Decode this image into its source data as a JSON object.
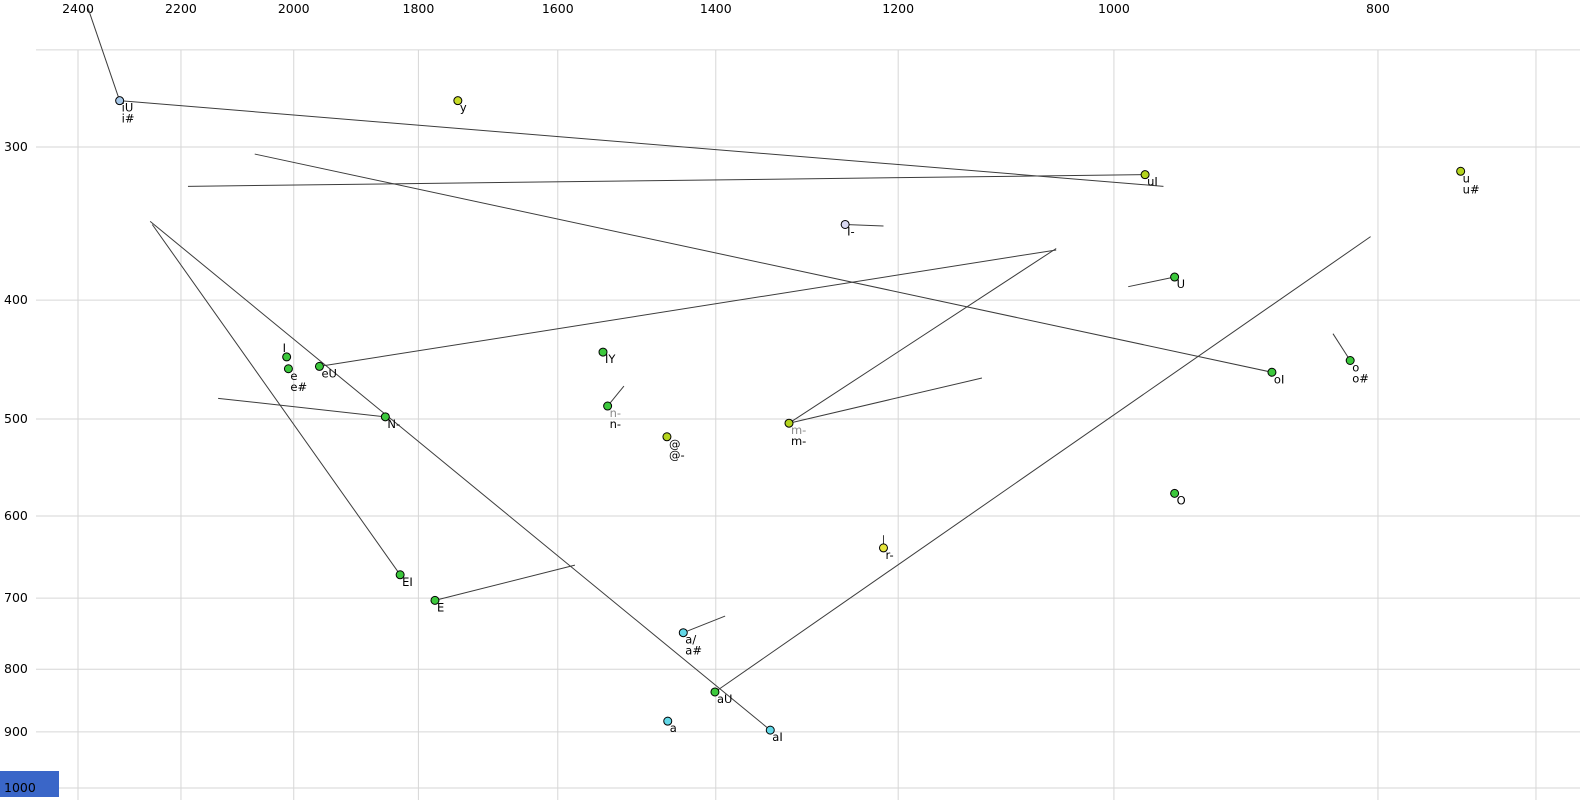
{
  "chart_data": {
    "type": "scatter",
    "title": "",
    "xlabel": "",
    "ylabel": "",
    "x_axis": {
      "scale": "log",
      "reversed": true,
      "unit": "Hz",
      "ticks": [
        2400,
        2200,
        2000,
        1800,
        1600,
        1400,
        1200,
        1000,
        800
      ],
      "extra_gridlines": [
        700
      ],
      "range": [
        2564,
        674
      ]
    },
    "y_axis": {
      "scale": "log",
      "reversed": true,
      "unit": "Hz",
      "ticks": [
        300,
        400,
        500,
        600,
        700,
        800,
        900,
        1000
      ],
      "extra_gridlines": [
        250
      ],
      "range": [
        228,
        1023
      ]
    },
    "points": [
      {
        "f2": 2317,
        "f1": 275,
        "color": "#a8c8e8",
        "labels": [
          {
            "text": "iU"
          },
          {
            "text": "i#"
          }
        ]
      },
      {
        "f2": 1741,
        "f1": 275,
        "color": "#c8dc28",
        "labels": [
          {
            "text": "y"
          }
        ]
      },
      {
        "f2": 974,
        "f1": 316,
        "color": "#b4d41e",
        "labels": [
          {
            "text": "uI"
          }
        ]
      },
      {
        "f2": 746,
        "f1": 314,
        "color": "#b4d41e",
        "labels": [
          {
            "text": "u"
          },
          {
            "text": "u#"
          }
        ]
      },
      {
        "f2": 1255,
        "f1": 347,
        "color": "#d8d8f0",
        "labels": [
          {
            "text": "I-"
          }
        ]
      },
      {
        "f2": 950,
        "f1": 383,
        "color": "#3cc83c",
        "labels": [
          {
            "text": "U"
          }
        ]
      },
      {
        "f2": 2012,
        "f1": 445,
        "color": "#3cc83c",
        "placement": "above",
        "labels": [
          {
            "text": "I"
          }
        ]
      },
      {
        "f2": 2009,
        "f1": 455,
        "color": "#3cc83c",
        "labels": [
          {
            "text": "e"
          },
          {
            "text": "e#"
          }
        ]
      },
      {
        "f2": 1957,
        "f1": 453,
        "color": "#3cc83c",
        "labels": [
          {
            "text": "eU"
          }
        ]
      },
      {
        "f2": 1540,
        "f1": 441,
        "color": "#3cc83c",
        "labels": [
          {
            "text": "IY"
          }
        ]
      },
      {
        "f2": 1534,
        "f1": 488,
        "color": "#3cc83c",
        "labels": [
          {
            "text": "n-",
            "color": "#8a8a8a"
          },
          {
            "text": "n-"
          }
        ]
      },
      {
        "f2": 1459,
        "f1": 517,
        "color": "#b4d41e",
        "labels": [
          {
            "text": "@"
          },
          {
            "text": "@-"
          }
        ]
      },
      {
        "f2": 1316,
        "f1": 504,
        "color": "#b4d41e",
        "labels": [
          {
            "text": "m-",
            "color": "#8a8a8a"
          },
          {
            "text": "m-"
          }
        ]
      },
      {
        "f2": 1851,
        "f1": 498,
        "color": "#3cc83c",
        "labels": [
          {
            "text": "N-"
          }
        ]
      },
      {
        "f2": 819,
        "f1": 448,
        "color": "#3cc83c",
        "labels": [
          {
            "text": "o"
          },
          {
            "text": "o#"
          }
        ]
      },
      {
        "f2": 875,
        "f1": 458,
        "color": "#3cc83c",
        "labels": [
          {
            "text": "oI"
          }
        ]
      },
      {
        "f2": 950,
        "f1": 575,
        "color": "#3cc83c",
        "labels": [
          {
            "text": "O"
          }
        ]
      },
      {
        "f2": 1215,
        "f1": 637,
        "color": "#e6e63c",
        "labels": [
          {
            "text": "r-"
          }
        ]
      },
      {
        "f2": 1828,
        "f1": 670,
        "color": "#3cc83c",
        "labels": [
          {
            "text": "EI"
          }
        ]
      },
      {
        "f2": 1775,
        "f1": 703,
        "color": "#3cc83c",
        "labels": [
          {
            "text": "E"
          }
        ]
      },
      {
        "f2": 1439,
        "f1": 747,
        "color": "#62d8e8",
        "labels": [
          {
            "text": "a/"
          },
          {
            "text": "a#"
          }
        ]
      },
      {
        "f2": 1401,
        "f1": 835,
        "color": "#3cc83c",
        "labels": [
          {
            "text": "aU"
          }
        ]
      },
      {
        "f2": 1458,
        "f1": 882,
        "color": "#62d8e8",
        "labels": [
          {
            "text": "a"
          }
        ]
      },
      {
        "f2": 1337,
        "f1": 897,
        "color": "#62d8e8",
        "labels": [
          {
            "text": "aI"
          }
        ]
      }
    ],
    "segments": [
      {
        "name": "i#-tail",
        "from": [
          2380,
          231
        ],
        "to": [
          2317,
          275
        ]
      },
      {
        "name": "iU-trajectory",
        "from": [
          2317,
          275
        ],
        "to": [
          959,
          323
        ]
      },
      {
        "name": "uI-trajectory",
        "from": [
          974,
          316
        ],
        "to": [
          2187,
          323
        ]
      },
      {
        "name": "oI-trajectory",
        "from": [
          875,
          458
        ],
        "to": [
          2067,
          304
        ]
      },
      {
        "name": "EI-trajectory",
        "from": [
          1828,
          670
        ],
        "to": [
          2254,
          347
        ]
      },
      {
        "name": "aI-trajectory",
        "from": [
          1337,
          897
        ],
        "to": [
          2258,
          345
        ]
      },
      {
        "name": "aU-trajectory",
        "from": [
          1401,
          835
        ],
        "to": [
          805,
          355
        ]
      },
      {
        "name": "eU-trajectory",
        "from": [
          1957,
          453
        ],
        "to": [
          1050,
          364
        ]
      },
      {
        "name": "E-tail",
        "from": [
          1775,
          703
        ],
        "to": [
          1577,
          658
        ]
      },
      {
        "name": "N--tail",
        "from": [
          1851,
          498
        ],
        "to": [
          2132,
          481
        ]
      },
      {
        "name": "m--tail-long",
        "from": [
          1316,
          504
        ],
        "to": [
          1050,
          363
        ]
      },
      {
        "name": "m--tail-short",
        "from": [
          1316,
          504
        ],
        "to": [
          1118,
          463
        ]
      },
      {
        "name": "U-tail",
        "from": [
          988,
          390
        ],
        "to": [
          950,
          383
        ]
      },
      {
        "name": "I--tail",
        "from": [
          1255,
          347
        ],
        "to": [
          1215,
          348
        ]
      },
      {
        "name": "o-tail",
        "from": [
          831,
          426
        ],
        "to": [
          819,
          448
        ]
      },
      {
        "name": "n--tail",
        "from": [
          1534,
          488
        ],
        "to": [
          1513,
          470
        ]
      },
      {
        "name": "a/-tail",
        "from": [
          1439,
          747
        ],
        "to": [
          1389,
          724
        ]
      },
      {
        "name": "r--tail",
        "from": [
          1215,
          637
        ],
        "to": [
          1215,
          622
        ]
      }
    ],
    "colors": {
      "grid": "#d6d6d6",
      "trajectory": "#3c3c3c",
      "point_outline": "#000000",
      "label": "#000000",
      "label_muted": "#8a8a8a",
      "selection": "#3a66c8",
      "background": "#ffffff"
    }
  }
}
